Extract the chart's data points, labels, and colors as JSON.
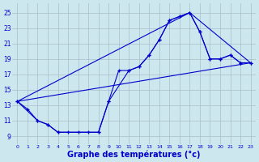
{
  "background_color": "#cce8ee",
  "grid_color": "#aabccc",
  "line_color": "#0000cc",
  "xlabel": "Graphe des températures (°c)",
  "xlabel_fontsize": 7,
  "ytick_labels": [
    "9",
    "11",
    "13",
    "15",
    "17",
    "19",
    "21",
    "23",
    "25"
  ],
  "ytick_vals": [
    9,
    11,
    13,
    15,
    17,
    19,
    21,
    23,
    25
  ],
  "xtick_vals": [
    0,
    1,
    2,
    3,
    4,
    5,
    6,
    7,
    8,
    9,
    10,
    11,
    12,
    13,
    14,
    15,
    16,
    17,
    18,
    19,
    20,
    21,
    22,
    23
  ],
  "xlim": [
    -0.5,
    23.5
  ],
  "ylim": [
    8.0,
    26.2
  ],
  "curve1_x": [
    0,
    1,
    2,
    3,
    4,
    5,
    6,
    7,
    8,
    9,
    10,
    11,
    12,
    13,
    14,
    15,
    16,
    17,
    18,
    19,
    20,
    21,
    22,
    23
  ],
  "curve1_y": [
    13.5,
    12.5,
    11.0,
    10.5,
    9.5,
    9.5,
    9.5,
    9.5,
    9.5,
    13.5,
    17.5,
    17.5,
    18.0,
    19.5,
    21.5,
    24.0,
    24.5,
    25.0,
    22.5,
    19.0,
    19.0,
    19.5,
    18.5,
    18.5
  ],
  "curve2_x": [
    0,
    2,
    3,
    4,
    8,
    9,
    11,
    12,
    13,
    14,
    15,
    16,
    17,
    18,
    19,
    20,
    21,
    22,
    23
  ],
  "curve2_y": [
    13.5,
    11.0,
    10.5,
    9.5,
    9.5,
    13.5,
    17.5,
    18.0,
    19.5,
    21.5,
    24.0,
    24.5,
    25.0,
    22.5,
    19.0,
    19.0,
    19.5,
    18.5,
    18.5
  ],
  "curve3_x": [
    0,
    23
  ],
  "curve3_y": [
    13.5,
    18.5
  ],
  "curve4_x": [
    0,
    17,
    23
  ],
  "curve4_y": [
    13.5,
    25.0,
    18.5
  ]
}
